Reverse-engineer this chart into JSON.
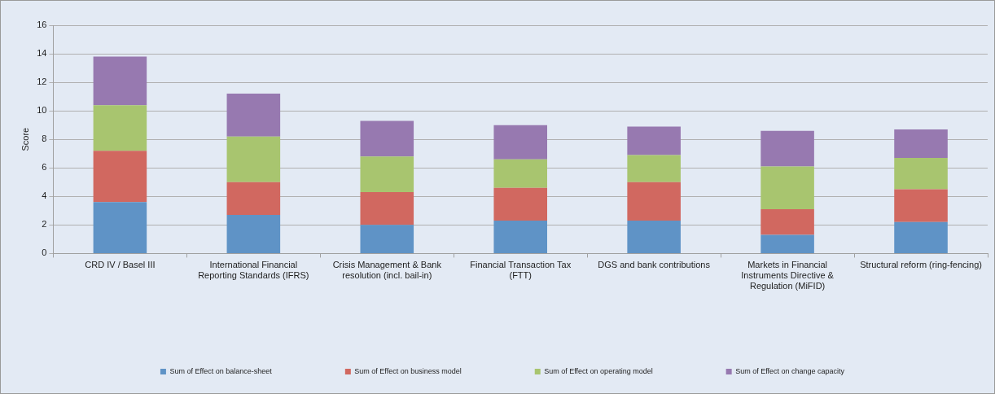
{
  "chart_data": {
    "type": "bar",
    "stacked": true,
    "ylabel": "Score",
    "categories": [
      "CRD IV / Basel III",
      "International Financial Reporting Standards (IFRS)",
      "Crisis Management & Bank resolution (incl. bail-in)",
      "Financial Transaction Tax (FTT)",
      "DGS and bank contributions",
      "Markets in Financial Instruments Directive & Regulation (MiFID)",
      "Structural reform (ring-fencing)"
    ],
    "series": [
      {
        "name": "Sum of Effect on balance-sheet",
        "color": "#5f93c6",
        "values": [
          3.6,
          2.7,
          2.0,
          2.3,
          2.3,
          1.3,
          2.2
        ]
      },
      {
        "name": "Sum of Effect on business model",
        "color": "#d16860",
        "values": [
          3.6,
          2.3,
          2.3,
          2.3,
          2.7,
          1.8,
          2.3
        ]
      },
      {
        "name": "Sum of Effect on operating model",
        "color": "#a8c56f",
        "values": [
          3.2,
          3.2,
          2.5,
          2.0,
          1.9,
          3.0,
          2.2
        ]
      },
      {
        "name": "Sum of Effect on change capacity",
        "color": "#9779b0",
        "values": [
          3.4,
          3.0,
          2.5,
          2.4,
          2.0,
          2.5,
          2.0
        ]
      }
    ],
    "ylim": [
      0,
      16
    ],
    "yticks": [
      0,
      2,
      4,
      6,
      8,
      10,
      12,
      14,
      16
    ],
    "grid": "y",
    "legend": "bottom"
  }
}
